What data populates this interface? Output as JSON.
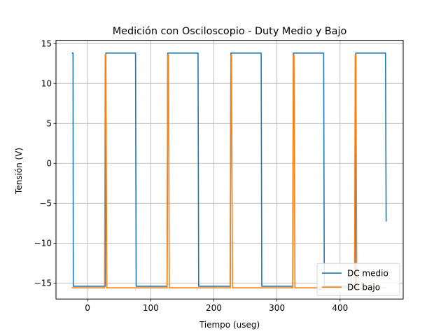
{
  "chart_data": {
    "type": "line",
    "title": "Medición con Osciloscopio - Duty Medio y Bajo",
    "xlabel": "Tiempo (useg)",
    "ylabel": "Tensión (V)",
    "xlim": [
      -50,
      500
    ],
    "ylim": [
      -17,
      15.4
    ],
    "xticks": [
      0,
      100,
      200,
      300,
      400
    ],
    "xtick_labels": [
      "0",
      "100",
      "200",
      "300",
      "400"
    ],
    "yticks": [
      -15,
      -10,
      -5,
      0,
      5,
      10,
      15
    ],
    "ytick_labels": [
      "−15",
      "−10",
      "−5",
      "0",
      "5",
      "10",
      "15"
    ],
    "grid": true,
    "legend_position": "lower-right",
    "series": [
      {
        "name": "DC medio",
        "color": "#1f77b4",
        "x": [
          -25,
          -23,
          -22.6,
          28,
          29,
          76,
          77,
          126,
          127,
          175,
          176,
          226,
          227,
          275,
          276,
          325,
          326,
          374,
          375,
          424,
          425,
          472,
          473
        ],
        "y": [
          13.8,
          13.8,
          -15.4,
          -15.4,
          13.8,
          13.8,
          -15.4,
          -15.4,
          13.8,
          13.8,
          -15.4,
          -15.4,
          13.8,
          13.8,
          -15.4,
          -15.4,
          13.8,
          13.8,
          -15.4,
          -15.4,
          13.8,
          13.8,
          -7.3
        ]
      },
      {
        "name": "DC bajo",
        "color": "#ff7f0e",
        "x": [
          -25,
          27,
          28,
          29,
          30.5,
          126,
          127,
          128,
          129.5,
          226,
          227,
          228,
          229.5,
          325,
          326,
          327,
          328.5,
          423,
          424,
          425,
          426.5,
          473
        ],
        "y": [
          -15.6,
          -15.6,
          13.6,
          13.6,
          -15.6,
          -15.6,
          13.6,
          13.6,
          -15.6,
          -15.6,
          13.6,
          13.6,
          -15.6,
          -15.6,
          13.6,
          13.6,
          -15.6,
          -15.6,
          13.6,
          13.6,
          -15.6,
          -15.6
        ]
      }
    ]
  }
}
